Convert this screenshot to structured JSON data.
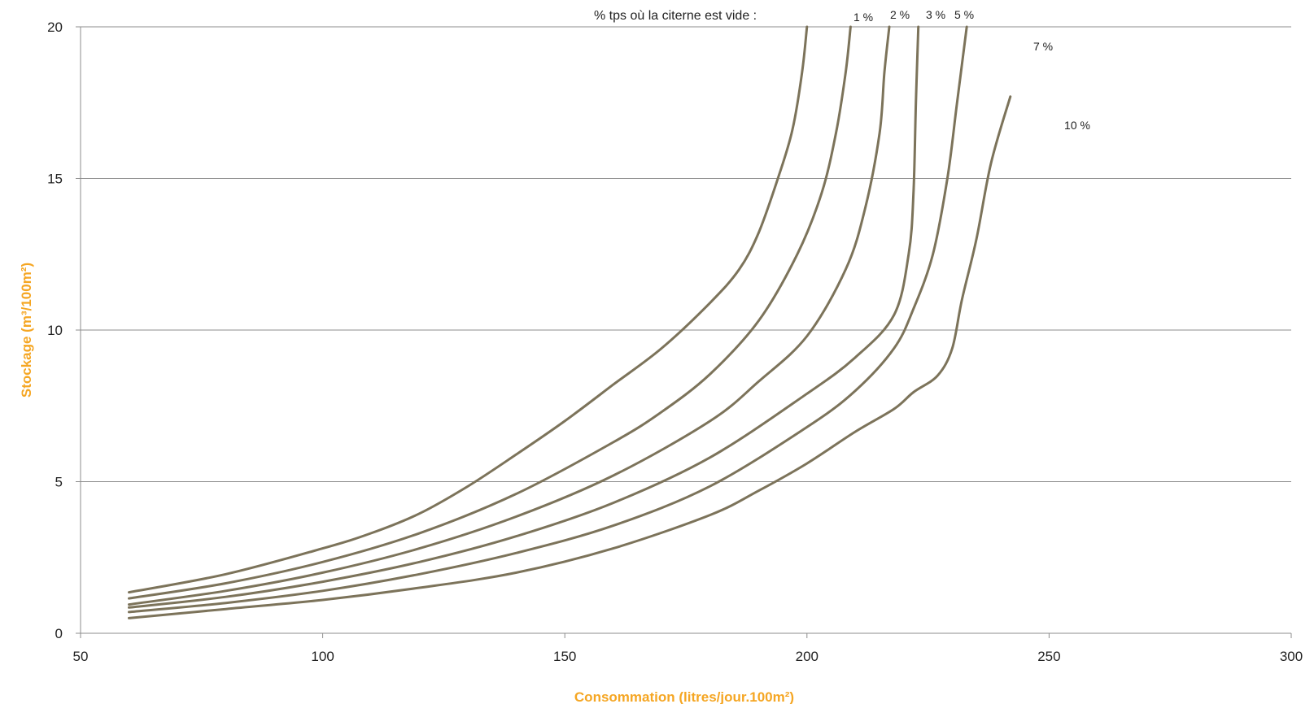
{
  "chart_data": {
    "type": "line",
    "title": "",
    "legend_caption": "% tps où la citerne est vide :",
    "xlabel": "Consommation (litres/jour.100m²)",
    "ylabel": "Stockage (m³/100m²)",
    "xlim": [
      50,
      300
    ],
    "ylim": [
      0,
      20
    ],
    "xticks": [
      50,
      100,
      150,
      200,
      250,
      300
    ],
    "yticks": [
      0,
      5,
      10,
      15,
      20
    ],
    "grid": "horizontal",
    "colors": {
      "series": "#7c735a",
      "axis_title": "#f5a623",
      "grid": "#8c8c8c"
    },
    "series": [
      {
        "name": "1 %",
        "points": [
          [
            60,
            1.35
          ],
          [
            80,
            1.95
          ],
          [
            100,
            2.8
          ],
          [
            110,
            3.3
          ],
          [
            120,
            3.95
          ],
          [
            130,
            4.85
          ],
          [
            140,
            5.9
          ],
          [
            150,
            7.0
          ],
          [
            160,
            8.2
          ],
          [
            170,
            9.4
          ],
          [
            180,
            10.9
          ],
          [
            186,
            12.0
          ],
          [
            190,
            13.2
          ],
          [
            194,
            15.0
          ],
          [
            197,
            16.6
          ],
          [
            199,
            18.5
          ],
          [
            200,
            20.0
          ]
        ]
      },
      {
        "name": "2 %",
        "points": [
          [
            60,
            1.15
          ],
          [
            80,
            1.65
          ],
          [
            100,
            2.35
          ],
          [
            120,
            3.3
          ],
          [
            140,
            4.6
          ],
          [
            160,
            6.3
          ],
          [
            170,
            7.3
          ],
          [
            180,
            8.55
          ],
          [
            190,
            10.3
          ],
          [
            198,
            12.5
          ],
          [
            203,
            14.5
          ],
          [
            206,
            16.5
          ],
          [
            208,
            18.5
          ],
          [
            209,
            20.0
          ]
        ]
      },
      {
        "name": "3 %",
        "points": [
          [
            60,
            0.95
          ],
          [
            80,
            1.4
          ],
          [
            100,
            2.0
          ],
          [
            120,
            2.8
          ],
          [
            140,
            3.85
          ],
          [
            160,
            5.2
          ],
          [
            180,
            7.0
          ],
          [
            190,
            8.3
          ],
          [
            200,
            9.8
          ],
          [
            208,
            12.0
          ],
          [
            212,
            14.0
          ],
          [
            215,
            16.5
          ],
          [
            216,
            18.5
          ],
          [
            217,
            20.0
          ]
        ]
      },
      {
        "name": "5 %",
        "points": [
          [
            60,
            0.85
          ],
          [
            80,
            1.2
          ],
          [
            100,
            1.7
          ],
          [
            120,
            2.35
          ],
          [
            140,
            3.2
          ],
          [
            160,
            4.3
          ],
          [
            180,
            5.8
          ],
          [
            200,
            7.9
          ],
          [
            210,
            9.1
          ],
          [
            218,
            10.5
          ],
          [
            221,
            12.5
          ],
          [
            222,
            14.5
          ],
          [
            222.5,
            17.5
          ],
          [
            223,
            20.0
          ]
        ]
      },
      {
        "name": "7 %",
        "points": [
          [
            60,
            0.7
          ],
          [
            80,
            1.0
          ],
          [
            100,
            1.4
          ],
          [
            120,
            1.95
          ],
          [
            140,
            2.65
          ],
          [
            160,
            3.55
          ],
          [
            180,
            4.85
          ],
          [
            200,
            6.8
          ],
          [
            210,
            8.0
          ],
          [
            218,
            9.4
          ],
          [
            222,
            10.7
          ],
          [
            226,
            12.5
          ],
          [
            229,
            15.0
          ],
          [
            231,
            17.5
          ],
          [
            233,
            20.0
          ]
        ]
      },
      {
        "name": "10 %",
        "points": [
          [
            60,
            0.5
          ],
          [
            80,
            0.8
          ],
          [
            100,
            1.1
          ],
          [
            120,
            1.5
          ],
          [
            140,
            2.0
          ],
          [
            160,
            2.8
          ],
          [
            180,
            3.9
          ],
          [
            190,
            4.7
          ],
          [
            200,
            5.6
          ],
          [
            210,
            6.65
          ],
          [
            218,
            7.4
          ],
          [
            222,
            7.95
          ],
          [
            227,
            8.5
          ],
          [
            230,
            9.4
          ],
          [
            232,
            11.0
          ],
          [
            235,
            13.0
          ],
          [
            238,
            15.5
          ],
          [
            242,
            17.7
          ]
        ]
      }
    ]
  }
}
